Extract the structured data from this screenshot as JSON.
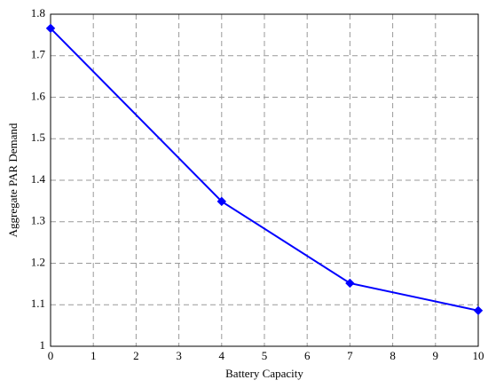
{
  "chart_data": {
    "type": "line",
    "x_label": "Battery Capacity",
    "y_label": "Aggregate PAR Demand",
    "x": [
      0,
      4,
      7,
      10
    ],
    "values": [
      1.766,
      1.349,
      1.152,
      1.086
    ],
    "color": "#0000ff",
    "xlim": [
      0,
      10
    ],
    "xticks": [
      0,
      1,
      2,
      3,
      4,
      5,
      6,
      7,
      8,
      9,
      10
    ],
    "ylim": [
      1,
      1.8
    ],
    "yticks": [
      1,
      1.1,
      1.2,
      1.3,
      1.4,
      1.5,
      1.6,
      1.7,
      1.8
    ],
    "grid": true
  }
}
